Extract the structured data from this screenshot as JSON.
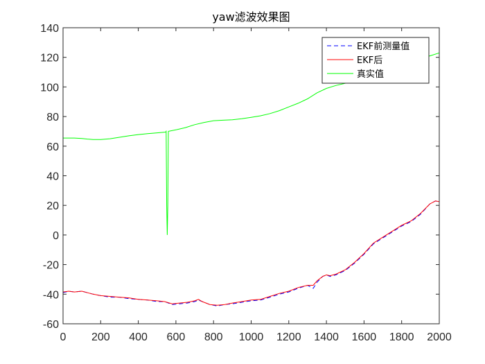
{
  "chart_data": {
    "type": "line",
    "title": "yaw滤波效果图",
    "xlabel": "",
    "ylabel": "",
    "xlim": [
      0,
      2000
    ],
    "ylim": [
      -60,
      140
    ],
    "xticks": [
      0,
      200,
      400,
      600,
      800,
      1000,
      1200,
      1400,
      1600,
      1800,
      2000
    ],
    "yticks": [
      -60,
      -40,
      -20,
      0,
      20,
      40,
      60,
      80,
      100,
      120,
      140
    ],
    "grid": false,
    "legend_position": "top-right",
    "series": [
      {
        "name": "EKF前测量值",
        "color": "#0000ff",
        "style": "dashed",
        "x": [
          0,
          30,
          60,
          100,
          130,
          160,
          200,
          250,
          300,
          350,
          400,
          450,
          500,
          540,
          580,
          620,
          660,
          700,
          720,
          740,
          780,
          820,
          860,
          900,
          950,
          1000,
          1050,
          1100,
          1150,
          1200,
          1250,
          1300,
          1330,
          1350,
          1380,
          1400,
          1420,
          1450,
          1500,
          1550,
          1600,
          1650,
          1700,
          1750,
          1800,
          1850,
          1900,
          1950,
          1980,
          2000
        ],
        "y": [
          -39,
          -38,
          -38.5,
          -38,
          -39,
          -40,
          -41,
          -42,
          -42,
          -43,
          -43.5,
          -44,
          -45,
          -45,
          -47,
          -46.5,
          -46,
          -45,
          -44,
          -45,
          -47,
          -48,
          -47,
          -46.5,
          -45.5,
          -44.5,
          -44,
          -42,
          -40,
          -38.5,
          -36,
          -34,
          -36,
          -32,
          -28,
          -27,
          -28,
          -27,
          -24,
          -19,
          -13,
          -6,
          -2,
          2,
          6,
          9,
          14,
          21,
          23,
          22
        ]
      },
      {
        "name": "EKF后",
        "color": "#ff0000",
        "style": "solid",
        "x": [
          0,
          30,
          60,
          100,
          130,
          160,
          200,
          250,
          300,
          350,
          400,
          450,
          500,
          540,
          580,
          620,
          660,
          700,
          720,
          740,
          780,
          820,
          860,
          900,
          950,
          1000,
          1050,
          1100,
          1150,
          1200,
          1250,
          1300,
          1330,
          1350,
          1380,
          1400,
          1420,
          1450,
          1500,
          1550,
          1600,
          1650,
          1700,
          1750,
          1800,
          1850,
          1900,
          1950,
          1980,
          2000
        ],
        "y": [
          -38.5,
          -38,
          -38.5,
          -38,
          -39,
          -40,
          -41,
          -41.5,
          -42,
          -42.5,
          -43.5,
          -44,
          -44.5,
          -45,
          -46.5,
          -46,
          -45.5,
          -44.5,
          -43.5,
          -45,
          -47,
          -47.5,
          -47,
          -46,
          -45,
          -44,
          -43.5,
          -41.5,
          -39.5,
          -38,
          -35.5,
          -34,
          -34,
          -31,
          -28,
          -27,
          -27.5,
          -26.5,
          -23.5,
          -18.5,
          -12.5,
          -5.5,
          -1.5,
          2.5,
          6.5,
          9.5,
          14.5,
          21,
          23,
          22.5
        ]
      },
      {
        "name": "真实值",
        "color": "#00ff00",
        "style": "solid",
        "x": [
          0,
          60,
          100,
          130,
          160,
          200,
          250,
          300,
          350,
          400,
          450,
          500,
          545,
          548,
          551,
          554,
          557,
          560,
          600,
          650,
          700,
          750,
          800,
          850,
          900,
          950,
          1000,
          1050,
          1100,
          1150,
          1200,
          1250,
          1300,
          1350,
          1400,
          1450,
          1500,
          1550,
          1600,
          1650,
          1700,
          1750,
          1800,
          1850,
          1900,
          1950,
          2000
        ],
        "y": [
          65.5,
          65.5,
          65.2,
          64.8,
          64.5,
          64.5,
          65,
          66,
          67,
          67.8,
          68.5,
          69,
          69.5,
          70,
          20,
          0,
          20,
          70,
          71,
          72.5,
          74.5,
          76,
          77.2,
          77.5,
          77.8,
          78.5,
          79.5,
          80.5,
          82,
          84,
          86.5,
          89,
          92,
          96,
          99,
          101,
          102.5,
          104,
          106,
          109,
          112,
          114,
          116,
          118,
          119.5,
          121,
          123
        ]
      }
    ]
  }
}
